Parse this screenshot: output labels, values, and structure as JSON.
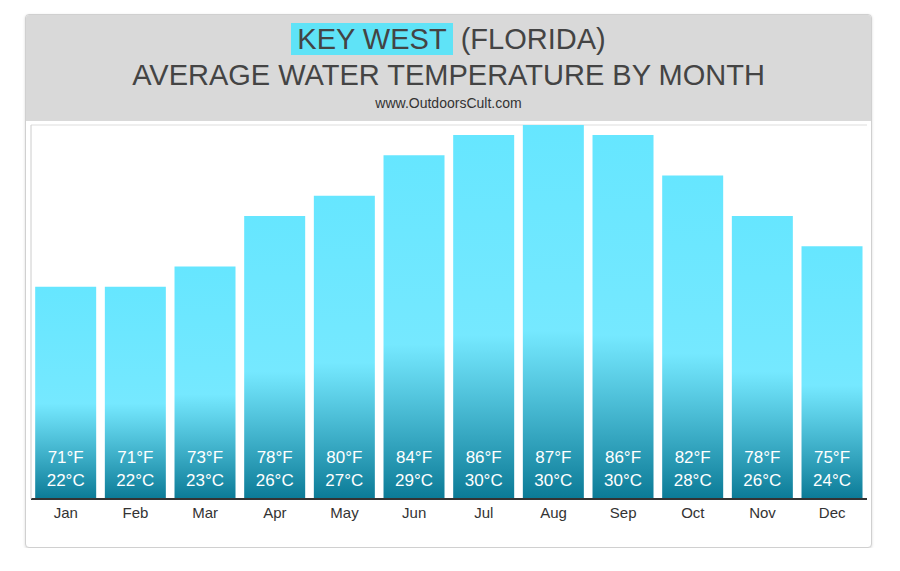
{
  "chart_data": {
    "type": "bar",
    "title": [
      "KEY WEST",
      "(FLORIDA)"
    ],
    "subtitle": "AVERAGE WATER TEMPERATURE BY MONTH",
    "source": "www.OutdoorsCult.com",
    "categories": [
      "Jan",
      "Feb",
      "Mar",
      "Apr",
      "May",
      "Jun",
      "Jul",
      "Aug",
      "Sep",
      "Oct",
      "Nov",
      "Dec"
    ],
    "values": [
      71,
      71,
      73,
      78,
      80,
      84,
      86,
      87,
      86,
      82,
      78,
      75
    ],
    "value_labels": [
      "71°F",
      "71°F",
      "73°F",
      "78°F",
      "80°F",
      "84°F",
      "86°F",
      "87°F",
      "86°F",
      "82°F",
      "78°F",
      "75°F"
    ],
    "celsius_labels": [
      "22°C",
      "22°C",
      "23°C",
      "26°C",
      "27°C",
      "29°C",
      "30°C",
      "30°C",
      "30°C",
      "28°C",
      "26°C",
      "24°C"
    ],
    "color": "#66e6ff",
    "ylim": [
      50,
      87
    ],
    "yticks": [
      50,
      55,
      60,
      65,
      70,
      75,
      80,
      85
    ],
    "grid": true,
    "data_labels": true,
    "tick_labels": "x"
  }
}
